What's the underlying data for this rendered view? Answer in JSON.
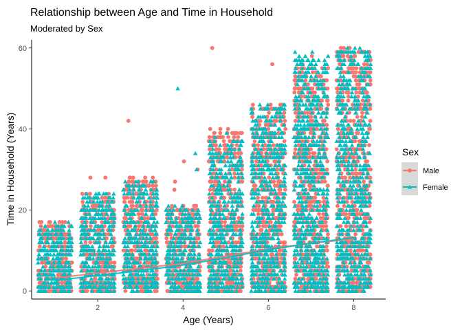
{
  "chart_data": {
    "type": "scatter",
    "title": "Relationship between Age and Time in Household",
    "subtitle": "Moderated by Sex",
    "xlabel": "Age (Years)",
    "ylabel": "Time in Household (Years)",
    "xlim": [
      0.45,
      8.75
    ],
    "ylim": [
      -2,
      62
    ],
    "x_ticks": [
      2,
      4,
      6,
      8
    ],
    "y_ticks": [
      0,
      20,
      40,
      60
    ],
    "grid": false,
    "legend": {
      "title": "Sex",
      "placement": "right"
    },
    "jitter_width": 0.4,
    "series": [
      {
        "name": "Male",
        "color": "#F8766D",
        "marker": "circle",
        "trend": [
          [
            1,
            3.2
          ],
          [
            2,
            4.4
          ],
          [
            3,
            5.6
          ],
          [
            4,
            6.8
          ],
          [
            5,
            8.6
          ],
          [
            6,
            10.4
          ],
          [
            7,
            11.8
          ],
          [
            8,
            12.8
          ]
        ],
        "groups": [
          {
            "x": 1,
            "max": 17,
            "outliers": []
          },
          {
            "x": 2,
            "max": 24,
            "outliers": [
              28,
              28
            ]
          },
          {
            "x": 3,
            "max": 28,
            "outliers": [
              42
            ]
          },
          {
            "x": 4,
            "max": 21,
            "outliers": [
              30,
              32,
              27,
              25
            ]
          },
          {
            "x": 5,
            "max": 40,
            "outliers": [
              60
            ]
          },
          {
            "x": 6,
            "max": 46,
            "outliers": [
              56
            ]
          },
          {
            "x": 7,
            "max": 56,
            "outliers": [
              55,
              58
            ]
          },
          {
            "x": 8,
            "max": 60,
            "outliers": []
          }
        ]
      },
      {
        "name": "Female",
        "color": "#00BFC4",
        "marker": "triangle",
        "trend": [
          [
            1,
            2.6
          ],
          [
            2,
            3.8
          ],
          [
            3,
            5.0
          ],
          [
            4,
            6.4
          ],
          [
            5,
            8.2
          ],
          [
            6,
            10.2
          ],
          [
            7,
            11.8
          ],
          [
            8,
            13.2
          ]
        ],
        "groups": [
          {
            "x": 1,
            "max": 17,
            "outliers": []
          },
          {
            "x": 2,
            "max": 24,
            "outliers": []
          },
          {
            "x": 3,
            "max": 27,
            "outliers": []
          },
          {
            "x": 4,
            "max": 21,
            "outliers": [
              50,
              34,
              30
            ]
          },
          {
            "x": 5,
            "max": 38,
            "outliers": [
              39,
              36
            ]
          },
          {
            "x": 6,
            "max": 46,
            "outliers": []
          },
          {
            "x": 7,
            "max": 59,
            "outliers": [
              59,
              58
            ]
          },
          {
            "x": 8,
            "max": 60,
            "outliers": []
          }
        ]
      }
    ]
  }
}
